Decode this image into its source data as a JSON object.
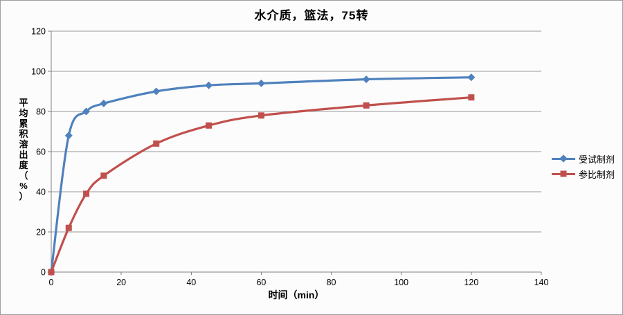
{
  "chart_data": {
    "type": "line",
    "title": "水介质，篮法，75转",
    "xlabel": "时间（min）",
    "ylabel": "平均累积溶出度（%）",
    "x": [
      0,
      5,
      10,
      15,
      30,
      45,
      60,
      90,
      120
    ],
    "series": [
      {
        "name": "受试制剂",
        "color": "#4f81bd",
        "marker": "diamond",
        "values": [
          0,
          68,
          80,
          84,
          90,
          93,
          94,
          96,
          97
        ]
      },
      {
        "name": "参比制剂",
        "color": "#c0504d",
        "marker": "square",
        "values": [
          0,
          22,
          39,
          48,
          64,
          73,
          78,
          83,
          87
        ]
      }
    ],
    "xlim": [
      0,
      140
    ],
    "ylim": [
      0,
      120
    ],
    "xticks": [
      0,
      20,
      40,
      60,
      80,
      100,
      120,
      140
    ],
    "yticks": [
      0,
      20,
      40,
      60,
      80,
      100,
      120
    ],
    "grid": "horizontal",
    "smooth": true,
    "legend_position": "right"
  },
  "colors": {
    "gridline": "#979797",
    "axis": "#808080",
    "background": "#fcfcfc"
  }
}
